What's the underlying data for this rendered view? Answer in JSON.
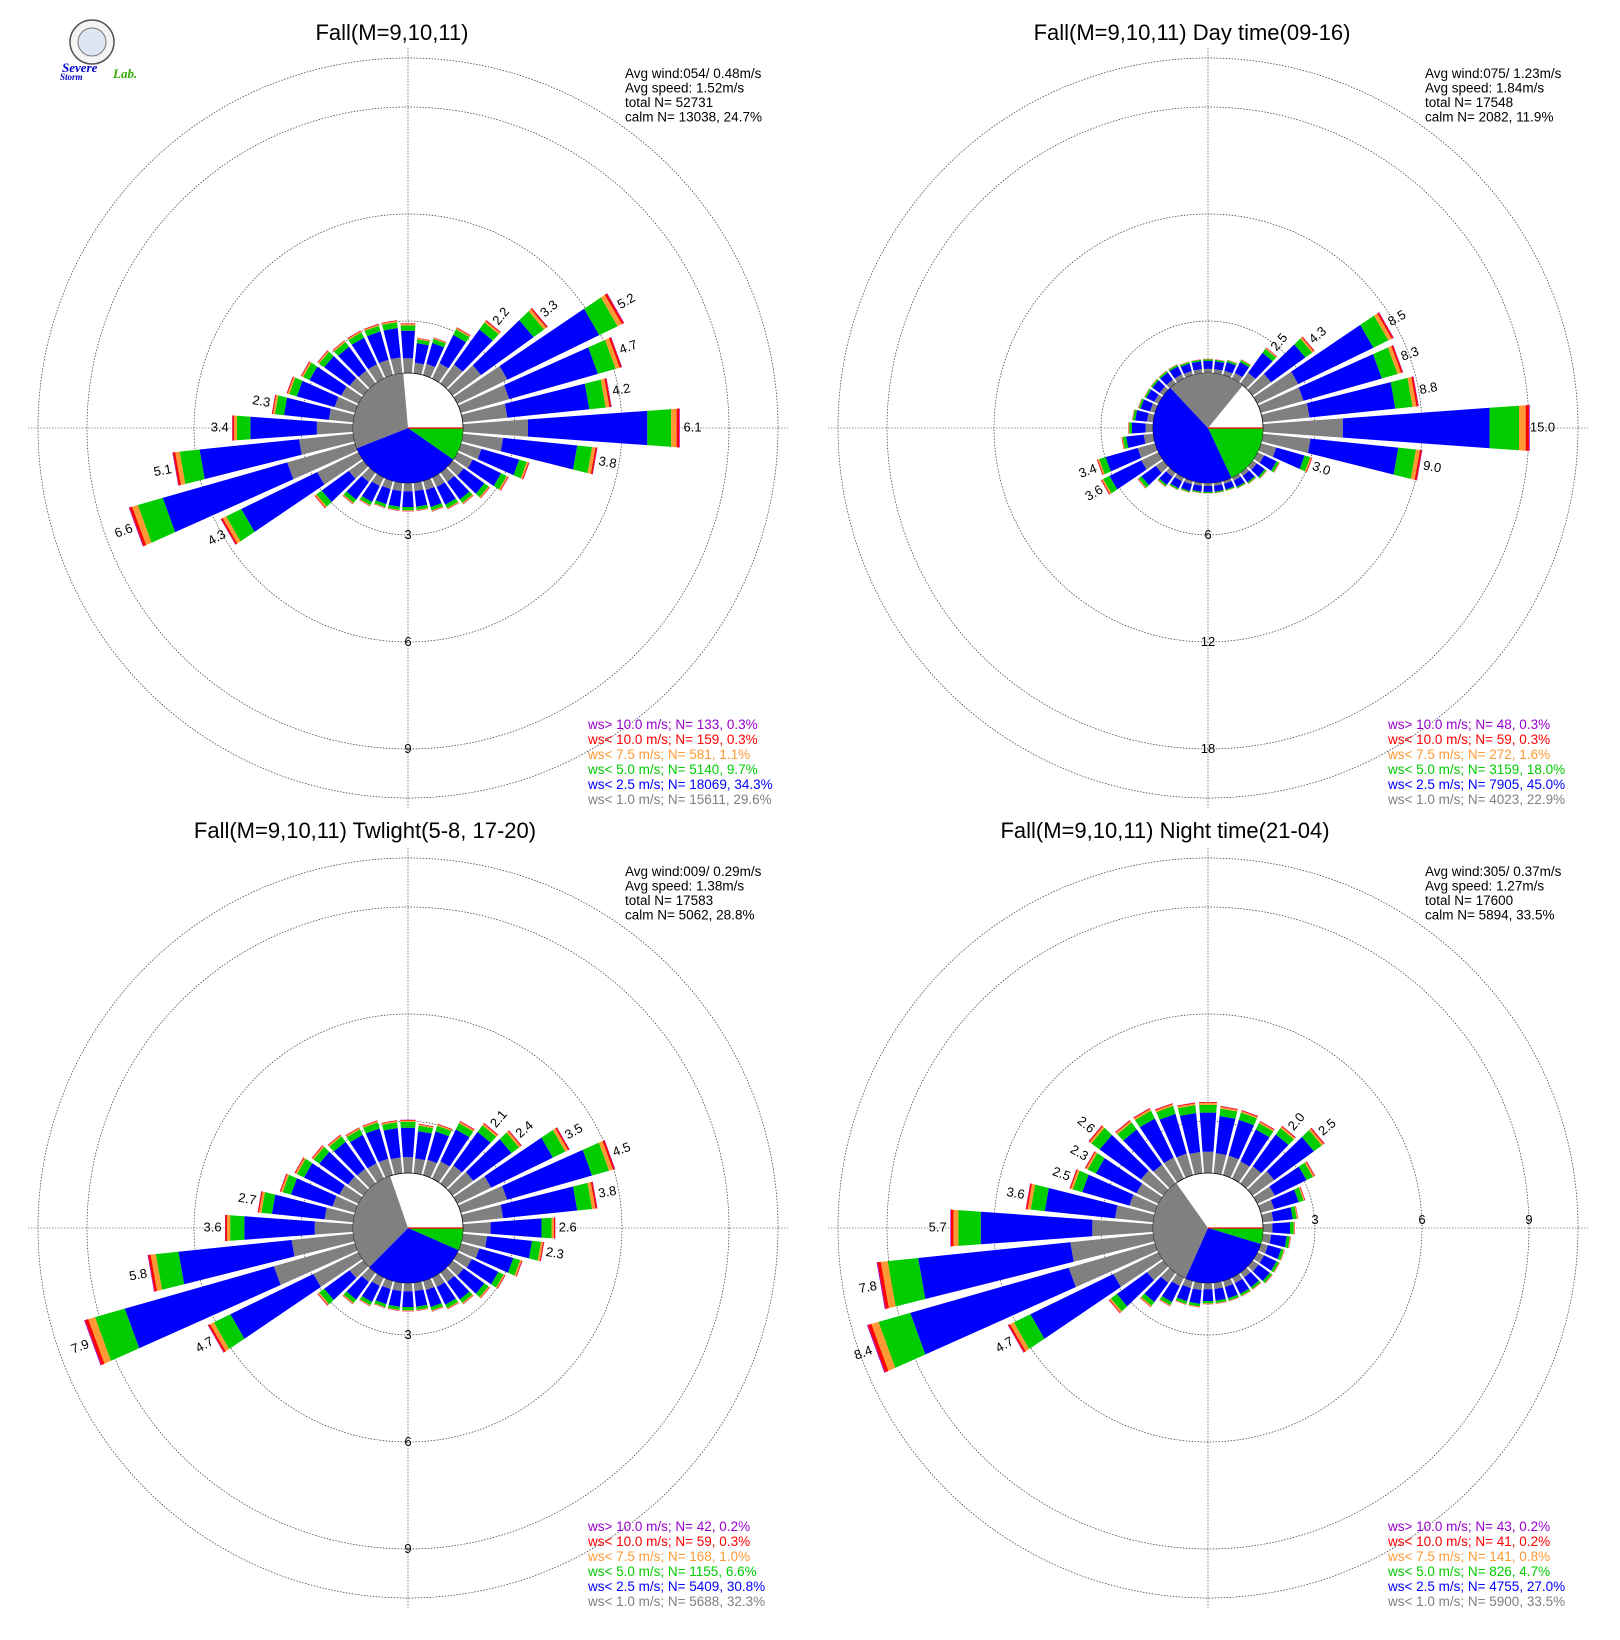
{
  "logo": {
    "text_a": "Severe",
    "text_b": "Storm",
    "text_c": "Lab."
  },
  "colors": {
    "gt10": "#9900cc",
    "lt10": "#ff0000",
    "lt7_5": "#ff9933",
    "lt5": "#00cc00",
    "lt2_5": "#0000ff",
    "lt1": "#808080",
    "grid": "#333333"
  },
  "chart_data": [
    {
      "type": "wind_rose",
      "title": "Fall(M=9,10,11)",
      "stats": {
        "avg_wind": "Avg wind:054/ 0.48m/s",
        "avg_speed": "Avg speed: 1.52m/s",
        "total": "total N=      52731",
        "calm": "calm N=  13038,  24.7%"
      },
      "ring_step": 3,
      "ring_labels": [
        "3",
        "6",
        "9"
      ],
      "ring_label_side": "bottom",
      "calm_pie": {
        "lt1": 29.6,
        "lt2_5": 34.3,
        "lt5": 9.7,
        "other": 2.6
      },
      "sectors": [
        {
          "dir": 10,
          "freq": 1.0
        },
        {
          "dir": 20,
          "freq": 1.1
        },
        {
          "dir": 30,
          "freq": 1.6
        },
        {
          "dir": 40,
          "freq": 2.2,
          "label": "2.2"
        },
        {
          "dir": 50,
          "freq": 3.3,
          "label": "3.3"
        },
        {
          "dir": 60,
          "freq": 5.2,
          "label": "5.2"
        },
        {
          "dir": 70,
          "freq": 4.7,
          "label": "4.7"
        },
        {
          "dir": 80,
          "freq": 4.2,
          "label": "4.2"
        },
        {
          "dir": 90,
          "freq": 6.1,
          "label": "6.1"
        },
        {
          "dir": 100,
          "freq": 3.8,
          "label": "3.8"
        },
        {
          "dir": 110,
          "freq": 2.0
        },
        {
          "dir": 120,
          "freq": 1.6
        },
        {
          "dir": 130,
          "freq": 1.3
        },
        {
          "dir": 140,
          "freq": 1.1
        },
        {
          "dir": 150,
          "freq": 1.0
        },
        {
          "dir": 160,
          "freq": 0.9
        },
        {
          "dir": 170,
          "freq": 0.8
        },
        {
          "dir": 180,
          "freq": 0.8
        },
        {
          "dir": 190,
          "freq": 0.8
        },
        {
          "dir": 200,
          "freq": 0.8
        },
        {
          "dir": 210,
          "freq": 0.9
        },
        {
          "dir": 220,
          "freq": 1.1
        },
        {
          "dir": 230,
          "freq": 1.7
        },
        {
          "dir": 240,
          "freq": 4.3,
          "label": "4.3"
        },
        {
          "dir": 250,
          "freq": 6.6,
          "label": "6.6"
        },
        {
          "dir": 260,
          "freq": 5.1,
          "label": "5.1"
        },
        {
          "dir": 270,
          "freq": 3.4,
          "label": "3.4"
        },
        {
          "dir": 280,
          "freq": 2.3,
          "label": "2.3"
        },
        {
          "dir": 290,
          "freq": 2.0
        },
        {
          "dir": 300,
          "freq": 1.8
        },
        {
          "dir": 310,
          "freq": 1.6
        },
        {
          "dir": 320,
          "freq": 1.5
        },
        {
          "dir": 330,
          "freq": 1.5
        },
        {
          "dir": 340,
          "freq": 1.5
        },
        {
          "dir": 350,
          "freq": 1.5
        },
        {
          "dir": 360,
          "freq": 1.4
        }
      ],
      "legend": [
        {
          "text": "ws> 10.0 m/s; N=   133,  0.3%",
          "color": "#9900cc"
        },
        {
          "text": "ws< 10.0 m/s; N=   159,  0.3%",
          "color": "#ff0000"
        },
        {
          "text": "ws<  7.5 m/s; N=   581,  1.1%",
          "color": "#ff9933"
        },
        {
          "text": "ws<  5.0 m/s; N=  5140,  9.7%",
          "color": "#00cc00"
        },
        {
          "text": "ws<  2.5 m/s; N= 18069, 34.3%",
          "color": "#0000ff"
        },
        {
          "text": "ws<  1.0 m/s; N= 15611, 29.6%",
          "color": "#808080"
        }
      ]
    },
    {
      "type": "wind_rose",
      "title": "Fall(M=9,10,11) Day time(09-16)",
      "stats": {
        "avg_wind": "Avg wind:075/ 1.23m/s",
        "avg_speed": "Avg speed: 1.84m/s",
        "total": "total N=      17548",
        "calm": "calm N=   2082,  11.9%"
      },
      "ring_step": 6,
      "ring_labels": [
        "6",
        "12",
        "18"
      ],
      "ring_label_side": "bottom",
      "calm_pie": {
        "lt1": 22.9,
        "lt2_5": 45.0,
        "lt5": 18.0,
        "other": 2.2
      },
      "sectors": [
        {
          "dir": 10,
          "freq": 0.8
        },
        {
          "dir": 20,
          "freq": 0.9
        },
        {
          "dir": 30,
          "freq": 1.2
        },
        {
          "dir": 40,
          "freq": 2.5,
          "label": "2.5"
        },
        {
          "dir": 50,
          "freq": 4.3,
          "label": "4.3"
        },
        {
          "dir": 60,
          "freq": 8.5,
          "label": "8.5"
        },
        {
          "dir": 70,
          "freq": 8.3,
          "label": "8.3"
        },
        {
          "dir": 80,
          "freq": 8.8,
          "label": "8.8"
        },
        {
          "dir": 90,
          "freq": 15.0,
          "label": "15.0"
        },
        {
          "dir": 100,
          "freq": 9.0,
          "label": "9.0"
        },
        {
          "dir": 110,
          "freq": 3.0,
          "label": "3.0"
        },
        {
          "dir": 120,
          "freq": 1.4
        },
        {
          "dir": 130,
          "freq": 1.0
        },
        {
          "dir": 140,
          "freq": 0.8
        },
        {
          "dir": 150,
          "freq": 0.7
        },
        {
          "dir": 160,
          "freq": 0.6
        },
        {
          "dir": 170,
          "freq": 0.6
        },
        {
          "dir": 180,
          "freq": 0.6
        },
        {
          "dir": 190,
          "freq": 0.6
        },
        {
          "dir": 200,
          "freq": 0.7
        },
        {
          "dir": 210,
          "freq": 0.8
        },
        {
          "dir": 220,
          "freq": 1.0
        },
        {
          "dir": 230,
          "freq": 1.8
        },
        {
          "dir": 240,
          "freq": 3.6,
          "label": "3.6"
        },
        {
          "dir": 250,
          "freq": 3.4,
          "label": "3.4"
        },
        {
          "dir": 260,
          "freq": 1.8
        },
        {
          "dir": 270,
          "freq": 1.4
        },
        {
          "dir": 280,
          "freq": 1.2
        },
        {
          "dir": 290,
          "freq": 1.0
        },
        {
          "dir": 300,
          "freq": 0.9
        },
        {
          "dir": 310,
          "freq": 0.9
        },
        {
          "dir": 320,
          "freq": 0.9
        },
        {
          "dir": 330,
          "freq": 0.9
        },
        {
          "dir": 340,
          "freq": 0.8
        },
        {
          "dir": 350,
          "freq": 0.8
        },
        {
          "dir": 360,
          "freq": 0.8
        }
      ],
      "legend": [
        {
          "text": "ws> 10.0 m/s; N=    48,  0.3%",
          "color": "#9900cc"
        },
        {
          "text": "ws< 10.0 m/s; N=    59,  0.3%",
          "color": "#ff0000"
        },
        {
          "text": "ws<  7.5 m/s; N=   272,  1.6%",
          "color": "#ff9933"
        },
        {
          "text": "ws<  5.0 m/s; N=  3159, 18.0%",
          "color": "#00cc00"
        },
        {
          "text": "ws<  2.5 m/s; N=  7905, 45.0%",
          "color": "#0000ff"
        },
        {
          "text": "ws<  1.0 m/s; N=  4023, 22.9%",
          "color": "#808080"
        }
      ]
    },
    {
      "type": "wind_rose",
      "title": "Fall(M=9,10,11) Twlight(5-8, 17-20)",
      "stats": {
        "avg_wind": "Avg wind:009/ 0.29m/s",
        "avg_speed": "Avg speed: 1.38m/s",
        "total": "total N=      17583",
        "calm": "calm N=   5062,  28.8%"
      },
      "ring_step": 3,
      "ring_labels": [
        "3",
        "6",
        "9"
      ],
      "ring_label_side": "bottom",
      "calm_pie": {
        "lt1": 32.3,
        "lt2_5": 30.8,
        "lt5": 6.6,
        "other": 1.5
      },
      "sectors": [
        {
          "dir": 10,
          "freq": 1.4
        },
        {
          "dir": 20,
          "freq": 1.5
        },
        {
          "dir": 30,
          "freq": 1.8
        },
        {
          "dir": 40,
          "freq": 2.1,
          "label": "2.1"
        },
        {
          "dir": 50,
          "freq": 2.4,
          "label": "2.4"
        },
        {
          "dir": 60,
          "freq": 3.5,
          "label": "3.5"
        },
        {
          "dir": 70,
          "freq": 4.5,
          "label": "4.5"
        },
        {
          "dir": 80,
          "freq": 3.8,
          "label": "3.8"
        },
        {
          "dir": 90,
          "freq": 2.6,
          "label": "2.6"
        },
        {
          "dir": 100,
          "freq": 2.3,
          "label": "2.3"
        },
        {
          "dir": 110,
          "freq": 1.8
        },
        {
          "dir": 120,
          "freq": 1.5
        },
        {
          "dir": 130,
          "freq": 1.3
        },
        {
          "dir": 140,
          "freq": 1.1
        },
        {
          "dir": 150,
          "freq": 1.0
        },
        {
          "dir": 160,
          "freq": 0.9
        },
        {
          "dir": 170,
          "freq": 0.8
        },
        {
          "dir": 180,
          "freq": 0.8
        },
        {
          "dir": 190,
          "freq": 0.8
        },
        {
          "dir": 200,
          "freq": 0.8
        },
        {
          "dir": 210,
          "freq": 0.9
        },
        {
          "dir": 220,
          "freq": 1.1
        },
        {
          "dir": 230,
          "freq": 1.6
        },
        {
          "dir": 240,
          "freq": 4.7,
          "label": "4.7"
        },
        {
          "dir": 250,
          "freq": 7.9,
          "label": "7.9"
        },
        {
          "dir": 260,
          "freq": 5.8,
          "label": "5.8"
        },
        {
          "dir": 270,
          "freq": 3.6,
          "label": "3.6"
        },
        {
          "dir": 280,
          "freq": 2.7,
          "label": "2.7"
        },
        {
          "dir": 290,
          "freq": 2.2
        },
        {
          "dir": 300,
          "freq": 2.0
        },
        {
          "dir": 310,
          "freq": 1.8
        },
        {
          "dir": 320,
          "freq": 1.7
        },
        {
          "dir": 330,
          "freq": 1.6
        },
        {
          "dir": 340,
          "freq": 1.6
        },
        {
          "dir": 350,
          "freq": 1.5
        },
        {
          "dir": 360,
          "freq": 1.5
        }
      ],
      "legend": [
        {
          "text": "ws> 10.0 m/s; N=    42,  0.2%",
          "color": "#9900cc"
        },
        {
          "text": "ws< 10.0 m/s; N=    59,  0.3%",
          "color": "#ff0000"
        },
        {
          "text": "ws<  7.5 m/s; N=   168,  1.0%",
          "color": "#ff9933"
        },
        {
          "text": "ws<  5.0 m/s; N=  1155,  6.6%",
          "color": "#00cc00"
        },
        {
          "text": "ws<  2.5 m/s; N=  5409, 30.8%",
          "color": "#0000ff"
        },
        {
          "text": "ws<  1.0 m/s; N=  5688, 32.3%",
          "color": "#808080"
        }
      ]
    },
    {
      "type": "wind_rose",
      "title": "Fall(M=9,10,11) Night time(21-04)",
      "stats": {
        "avg_wind": "Avg wind:305/ 0.37m/s",
        "avg_speed": "Avg speed: 1.27m/s",
        "total": "total N=      17600",
        "calm": "calm N=   5894,  33.5%"
      },
      "ring_step": 3,
      "ring_labels": [
        "3",
        "6",
        "9"
      ],
      "ring_label_side": "right",
      "calm_pie": {
        "lt1": 33.5,
        "lt2_5": 27.0,
        "lt5": 4.7,
        "other": 1.0
      },
      "sectors": [
        {
          "dir": 10,
          "freq": 1.9
        },
        {
          "dir": 20,
          "freq": 1.9
        },
        {
          "dir": 30,
          "freq": 1.8
        },
        {
          "dir": 40,
          "freq": 2.0,
          "label": "2.0"
        },
        {
          "dir": 50,
          "freq": 2.5,
          "label": "2.5"
        },
        {
          "dir": 60,
          "freq": 1.8
        },
        {
          "dir": 70,
          "freq": 1.3
        },
        {
          "dir": 80,
          "freq": 1.0
        },
        {
          "dir": 90,
          "freq": 0.9
        },
        {
          "dir": 100,
          "freq": 0.8
        },
        {
          "dir": 110,
          "freq": 0.7
        },
        {
          "dir": 120,
          "freq": 0.7
        },
        {
          "dir": 130,
          "freq": 0.7
        },
        {
          "dir": 140,
          "freq": 0.6
        },
        {
          "dir": 150,
          "freq": 0.6
        },
        {
          "dir": 160,
          "freq": 0.6
        },
        {
          "dir": 170,
          "freq": 0.6
        },
        {
          "dir": 180,
          "freq": 0.6
        },
        {
          "dir": 190,
          "freq": 0.7
        },
        {
          "dir": 200,
          "freq": 0.7
        },
        {
          "dir": 210,
          "freq": 0.9
        },
        {
          "dir": 220,
          "freq": 1.2
        },
        {
          "dir": 230,
          "freq": 1.9
        },
        {
          "dir": 240,
          "freq": 4.7,
          "label": "4.7"
        },
        {
          "dir": 250,
          "freq": 8.4,
          "label": "8.4"
        },
        {
          "dir": 260,
          "freq": 7.8,
          "label": "7.8"
        },
        {
          "dir": 270,
          "freq": 5.7,
          "label": "5.7"
        },
        {
          "dir": 280,
          "freq": 3.6,
          "label": "3.6"
        },
        {
          "dir": 290,
          "freq": 2.5,
          "label": "2.5"
        },
        {
          "dir": 300,
          "freq": 2.3,
          "label": "2.3"
        },
        {
          "dir": 310,
          "freq": 2.6,
          "label": "2.6"
        },
        {
          "dir": 320,
          "freq": 2.2
        },
        {
          "dir": 330,
          "freq": 2.2
        },
        {
          "dir": 340,
          "freq": 2.1
        },
        {
          "dir": 350,
          "freq": 2.0
        },
        {
          "dir": 360,
          "freq": 2.0
        }
      ],
      "legend": [
        {
          "text": "ws> 10.0 m/s; N=    43,  0.2%",
          "color": "#9900cc"
        },
        {
          "text": "ws< 10.0 m/s; N=    41,  0.2%",
          "color": "#ff0000"
        },
        {
          "text": "ws<  7.5 m/s; N=   141,  0.8%",
          "color": "#ff9933"
        },
        {
          "text": "ws<  5.0 m/s; N=   826,  4.7%",
          "color": "#00cc00"
        },
        {
          "text": "ws<  2.5 m/s; N=  4755, 27.0%",
          "color": "#0000ff"
        },
        {
          "text": "ws<  1.0 m/s; N=  5900, 33.5%",
          "color": "#808080"
        }
      ]
    }
  ]
}
